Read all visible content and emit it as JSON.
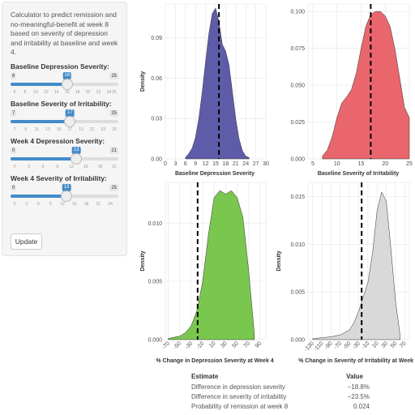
{
  "sidebar": {
    "description": "Calculator to predict remission and no-meaningful-benefit at week 8 based on severity of depression and irritability at baseline and week 4.",
    "sliders": [
      {
        "label": "Baseline Depression Severity:",
        "min": 6,
        "max": 25,
        "value": 16,
        "ticks": [
          "6",
          "8",
          "10",
          "12",
          "14",
          "16",
          "18",
          "20",
          "22",
          "24",
          "25"
        ]
      },
      {
        "label": "Baseline Severity of Irritability:",
        "min": 7,
        "max": 25,
        "value": 17,
        "ticks": [
          "7",
          "9",
          "11",
          "13",
          "15",
          "17",
          "19",
          "21",
          "23",
          "25"
        ]
      },
      {
        "label": "Week 4 Depression Severity:",
        "min": 0,
        "max": 21,
        "value": 13,
        "ticks": [
          "0",
          "3",
          "6",
          "9",
          "12",
          "15",
          "18",
          "21"
        ]
      },
      {
        "label": "Week 4 Severity of Irritability:",
        "min": 0,
        "max": 25,
        "value": 13,
        "ticks": [
          "0",
          "3",
          "6",
          "9",
          "12",
          "15",
          "18",
          "21",
          "24"
        ]
      }
    ],
    "update_label": "Update"
  },
  "table": {
    "headers": [
      "Estimate",
      "Value"
    ],
    "rows": [
      {
        "estimate": "Difference in depression severity",
        "value": "−18.8%"
      },
      {
        "estimate": "Difference in severity of irritability",
        "value": "−23.5%"
      },
      {
        "estimate": "Probability of remission at week 8",
        "value": "0.024"
      }
    ]
  },
  "chart_data": [
    {
      "type": "area",
      "title": "",
      "xlabel": "Baseline Depression Severity",
      "ylabel": "Density",
      "color": "#5e5ca8",
      "xlim": [
        0,
        30
      ],
      "ylim": [
        0,
        0.115
      ],
      "xticks": [
        0,
        3,
        6,
        9,
        12,
        15,
        18,
        21,
        24,
        27,
        30
      ],
      "yticks": [
        0,
        0.03,
        0.06,
        0.09
      ],
      "ytick_labels": [
        "0.00",
        "0.03",
        "0.06",
        "0.09"
      ],
      "xtick_rotate": false,
      "cutoff": 16,
      "x": [
        6,
        7,
        8,
        9,
        10,
        11,
        12,
        13,
        14,
        15,
        16,
        17,
        18,
        19,
        20,
        21,
        22,
        23,
        24,
        25
      ],
      "y": [
        0.001,
        0.004,
        0.008,
        0.016,
        0.03,
        0.05,
        0.072,
        0.093,
        0.108,
        0.112,
        0.102,
        0.085,
        0.08,
        0.07,
        0.05,
        0.03,
        0.015,
        0.006,
        0.002,
        0.001
      ]
    },
    {
      "type": "area",
      "title": "",
      "xlabel": "Baseline Severity of Irritability",
      "ylabel": "",
      "color": "#e9666d",
      "xlim": [
        4,
        25
      ],
      "ylim": [
        0,
        0.105
      ],
      "xticks": [
        5,
        10,
        15,
        20,
        25
      ],
      "yticks": [
        0,
        0.025,
        0.05,
        0.075,
        0.1
      ],
      "ytick_labels": [
        "0.000",
        "0.025",
        "0.050",
        "0.075",
        "0.100"
      ],
      "xtick_rotate": false,
      "cutoff": 17,
      "x": [
        7,
        8,
        9,
        10,
        11,
        12,
        13,
        14,
        15,
        16,
        17,
        18,
        19,
        20,
        21,
        22,
        23,
        24,
        25
      ],
      "y": [
        0.002,
        0.006,
        0.015,
        0.028,
        0.038,
        0.042,
        0.047,
        0.058,
        0.075,
        0.09,
        0.098,
        0.1,
        0.1,
        0.097,
        0.09,
        0.075,
        0.055,
        0.035,
        0.028
      ]
    },
    {
      "type": "area",
      "title": "",
      "xlabel": "% Change in Depression Severity at Week 4",
      "ylabel": "Density",
      "color": "#7ac74f",
      "xlim": [
        -75,
        100
      ],
      "ylim": [
        0,
        0.0135
      ],
      "xticks": [
        -70,
        -50,
        -30,
        -10,
        10,
        30,
        50,
        70,
        90
      ],
      "yticks": [
        0,
        0.005,
        0.01
      ],
      "ytick_labels": [
        "0.000",
        "0.005",
        "0.010"
      ],
      "xtick_rotate": true,
      "cutoff": -18.8,
      "x": [
        -70,
        -60,
        -50,
        -40,
        -30,
        -20,
        -10,
        0,
        10,
        20,
        30,
        40,
        50,
        60,
        70,
        80
      ],
      "y": [
        0.0001,
        0.0002,
        0.0003,
        0.0006,
        0.0012,
        0.0025,
        0.005,
        0.009,
        0.0122,
        0.0128,
        0.0125,
        0.0128,
        0.0122,
        0.0105,
        0.006,
        0.0005
      ]
    },
    {
      "type": "area",
      "title": "",
      "xlabel": "% Change in Severity of Irritability at Week 4",
      "ylabel": "Density",
      "color": "#d9d9d9",
      "xlim": [
        -140,
        80
      ],
      "ylim": [
        0,
        0.0165
      ],
      "xticks": [
        -130,
        -110,
        -90,
        -70,
        -50,
        -30,
        -10,
        10,
        30,
        50,
        70
      ],
      "yticks": [
        0,
        0.005,
        0.01,
        0.015
      ],
      "ytick_labels": [
        "0.000",
        "0.005",
        "0.010",
        "0.015"
      ],
      "xtick_rotate": true,
      "cutoff": -23.5,
      "x": [
        -130,
        -110,
        -90,
        -70,
        -50,
        -40,
        -30,
        -20,
        -10,
        0,
        10,
        20,
        30,
        40,
        50,
        60
      ],
      "y": [
        0.0001,
        0.0002,
        0.0003,
        0.0005,
        0.001,
        0.0018,
        0.003,
        0.0045,
        0.006,
        0.009,
        0.0135,
        0.0155,
        0.0145,
        0.0095,
        0.004,
        0.0005
      ]
    }
  ]
}
